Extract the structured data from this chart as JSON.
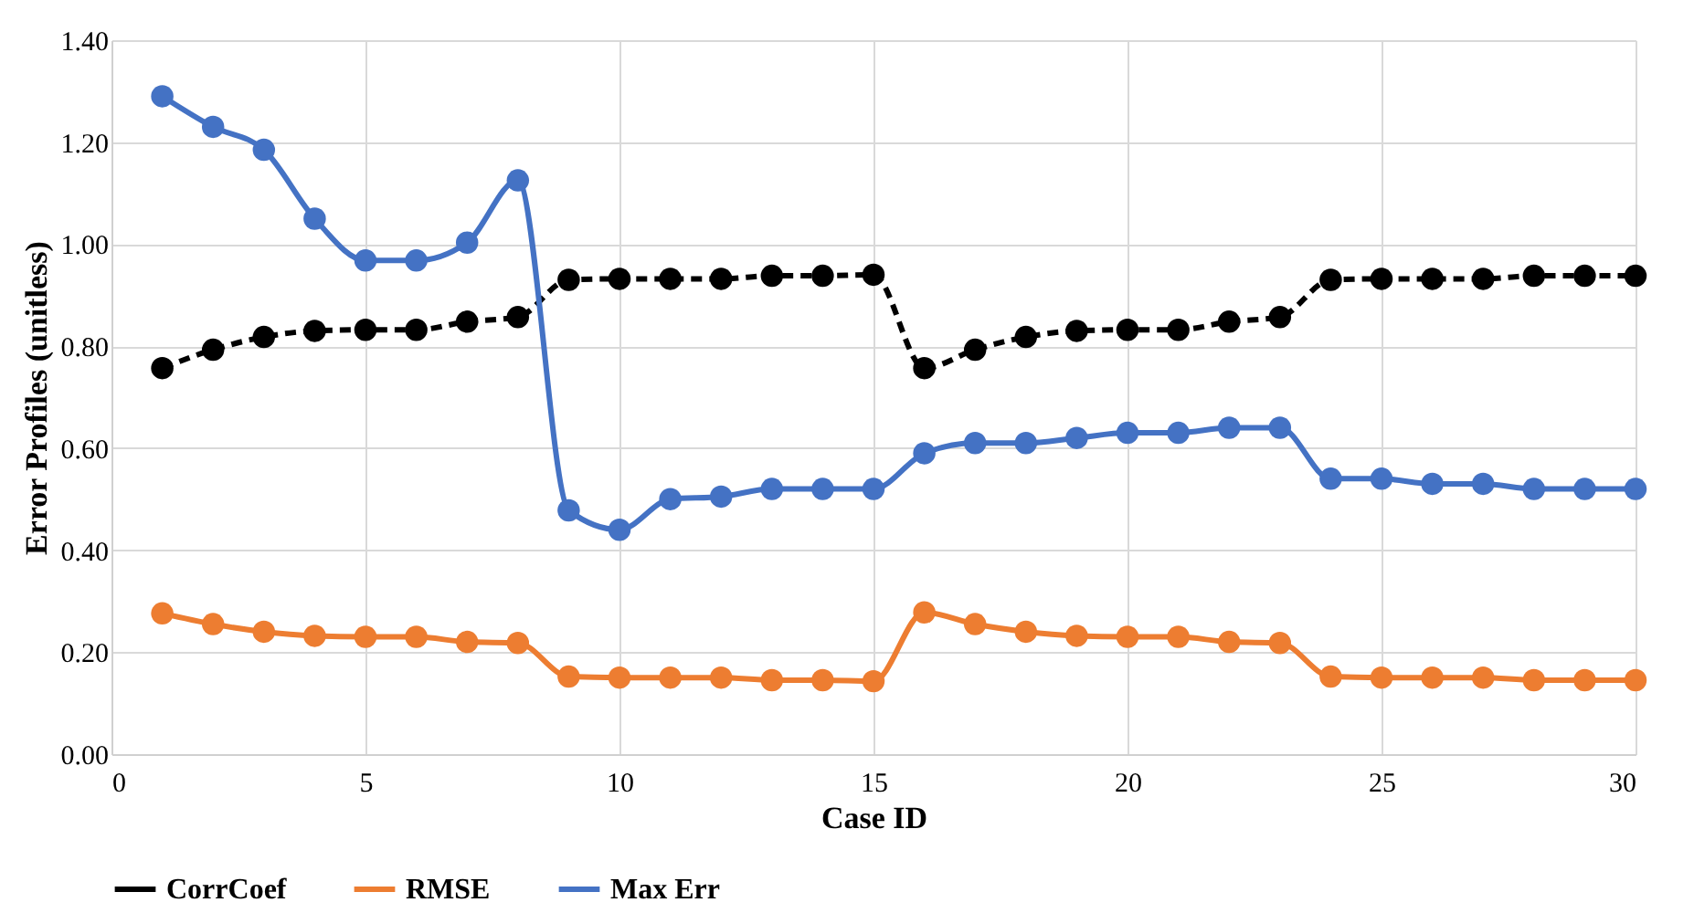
{
  "chart_data": {
    "type": "line",
    "xlabel": "Case ID",
    "ylabel": "Error Profiles (unitless)",
    "x": [
      1,
      2,
      3,
      4,
      5,
      6,
      7,
      8,
      9,
      10,
      11,
      12,
      13,
      14,
      15,
      16,
      17,
      18,
      19,
      20,
      21,
      22,
      23,
      24,
      25,
      26,
      27,
      28,
      29,
      30
    ],
    "series": [
      {
        "name": "CorrCoef",
        "color": "#000000",
        "line_style": "dashed",
        "values": [
          0.757,
          0.793,
          0.818,
          0.83,
          0.832,
          0.832,
          0.848,
          0.857,
          0.93,
          0.932,
          0.932,
          0.932,
          0.938,
          0.938,
          0.94,
          0.757,
          0.793,
          0.818,
          0.83,
          0.832,
          0.832,
          0.848,
          0.857,
          0.93,
          0.932,
          0.932,
          0.932,
          0.938,
          0.938,
          0.938
        ]
      },
      {
        "name": "RMSE",
        "color": "#ed7d31",
        "line_style": "solid",
        "values": [
          0.276,
          0.255,
          0.24,
          0.232,
          0.23,
          0.23,
          0.22,
          0.218,
          0.152,
          0.15,
          0.15,
          0.15,
          0.145,
          0.145,
          0.143,
          0.278,
          0.255,
          0.24,
          0.232,
          0.23,
          0.23,
          0.22,
          0.218,
          0.152,
          0.15,
          0.15,
          0.15,
          0.145,
          0.145,
          0.145
        ]
      },
      {
        "name": "Max  Err",
        "color": "#4472c4",
        "line_style": "solid",
        "values": [
          1.29,
          1.23,
          1.185,
          1.05,
          0.968,
          0.968,
          1.003,
          1.125,
          0.478,
          0.44,
          0.5,
          0.505,
          0.52,
          0.52,
          0.52,
          0.59,
          0.61,
          0.61,
          0.62,
          0.63,
          0.63,
          0.64,
          0.64,
          0.54,
          0.54,
          0.53,
          0.53,
          0.52,
          0.52,
          0.52
        ]
      }
    ],
    "xlim": [
      0,
      30
    ],
    "xticks": [
      0,
      5,
      10,
      15,
      20,
      25,
      30
    ],
    "ylim": [
      0,
      1.4
    ],
    "yticks": [
      {
        "value": 0,
        "label": "0.00"
      },
      {
        "value": 0.2,
        "label": "0.20"
      },
      {
        "value": 0.4,
        "label": "0.40"
      },
      {
        "value": 0.6,
        "label": "0.60"
      },
      {
        "value": 0.8,
        "label": "0.80"
      },
      {
        "value": 1.0,
        "label": "1.00"
      },
      {
        "value": 1.2,
        "label": "1.20"
      },
      {
        "value": 1.4,
        "label": "1.40"
      }
    ],
    "grid": true,
    "legend": "bottom",
    "marker": "circle"
  }
}
